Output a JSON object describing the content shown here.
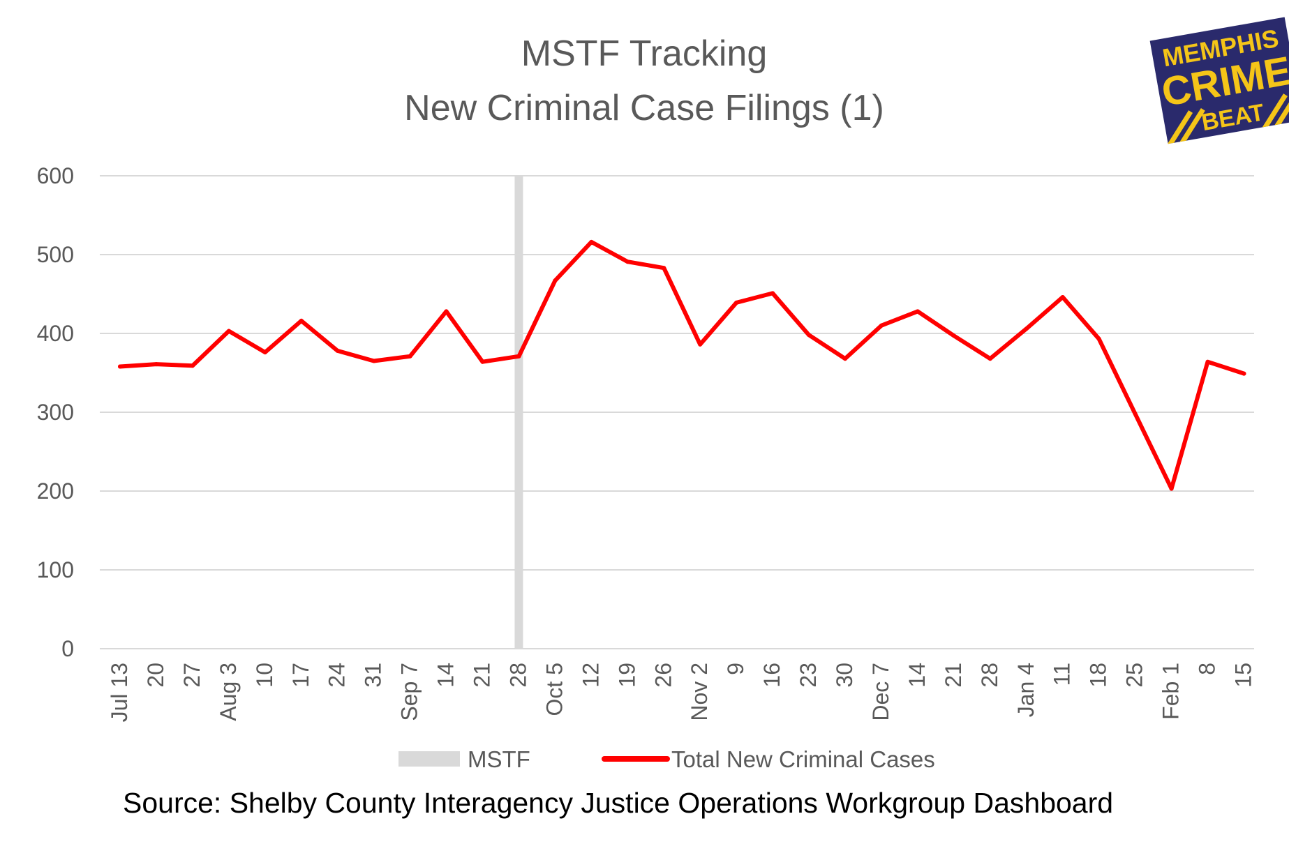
{
  "chart_data": {
    "type": "line",
    "title": "MSTF Tracking",
    "subtitle": "New Criminal Case Filings (1)",
    "xlabel": "",
    "ylabel": "",
    "ylim": [
      0,
      600
    ],
    "yticks": [
      0,
      100,
      200,
      300,
      400,
      500,
      600
    ],
    "grid": true,
    "legend": "bottom",
    "categories": [
      "Jul 13",
      "20",
      "27",
      "Aug 3",
      "10",
      "17",
      "24",
      "31",
      "Sep 7",
      "14",
      "21",
      "28",
      "Oct 5",
      "12",
      "19",
      "26",
      "Nov 2",
      "9",
      "16",
      "23",
      "30",
      "Dec 7",
      "14",
      "21",
      "28",
      "Jan 4",
      "11",
      "18",
      "25",
      "Feb 1",
      "8",
      "15"
    ],
    "series": [
      {
        "name": "Total New Criminal Cases",
        "color": "#ff0000",
        "values": [
          358,
          361,
          359,
          403,
          376,
          416,
          378,
          365,
          371,
          428,
          364,
          371,
          467,
          516,
          491,
          483,
          386,
          439,
          451,
          398,
          368,
          410,
          428,
          397,
          368,
          406,
          446,
          393,
          298,
          203,
          364,
          349
        ]
      }
    ],
    "markers": [
      {
        "name": "MSTF",
        "color": "#d9d9d9",
        "category": "28"
      }
    ]
  },
  "source": "Source:  Shelby County Interagency Justice Operations Workgroup Dashboard",
  "logo": {
    "line1": "MEMPHIS",
    "line2": "CRIME",
    "line3": "BEAT",
    "bg": "#2a2a6c",
    "fg": "#f5c518"
  }
}
